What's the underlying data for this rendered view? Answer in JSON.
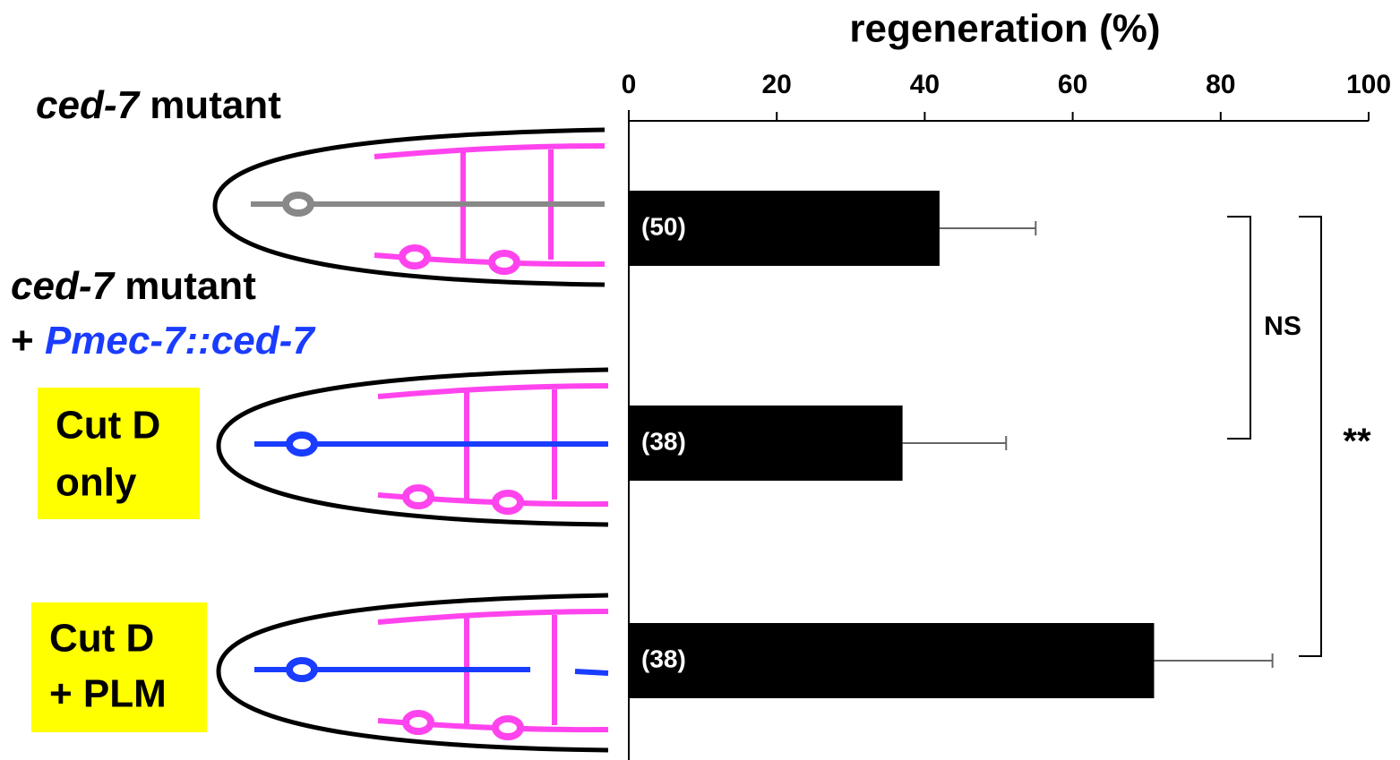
{
  "chart_data": {
    "type": "hbar",
    "title": "regeneration (%)",
    "values": [
      42,
      37,
      71
    ],
    "errors": [
      13,
      14,
      16
    ],
    "n_labels": [
      "(50)",
      "(38)",
      "(38)"
    ],
    "color": "#000000",
    "error_color": "#666666",
    "xlim": [
      0,
      100
    ],
    "xticks": [
      0,
      20,
      40,
      60,
      80,
      100
    ],
    "significance": [
      {
        "rows": [
          0,
          1
        ],
        "label": "NS"
      },
      {
        "rows": [
          0,
          2
        ],
        "label": "**"
      }
    ]
  },
  "left_panel": {
    "row1": {
      "gene": "ced-7",
      "text": "mutant"
    },
    "row2": {
      "gene": "ced-7",
      "text": "mutant",
      "prefix": "+",
      "construct": "Pmec-7::ced-7"
    },
    "cut_labels": [
      [
        "Cut D",
        "only"
      ],
      [
        "Cut D",
        "+ PLM"
      ]
    ]
  }
}
